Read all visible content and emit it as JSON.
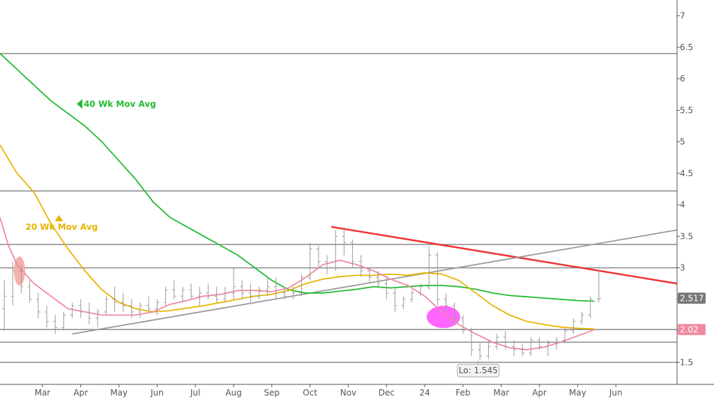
{
  "chart_data": {
    "type": "bar",
    "title": "",
    "xlabel": "",
    "ylabel": "",
    "ylim": [
      1.15,
      7.25
    ],
    "y_ticks": [
      "1.5",
      "2",
      "2.5",
      "3",
      "3.5",
      "4",
      "4.5",
      "5",
      "5.5",
      "6",
      "6.5",
      "7"
    ],
    "x_ticks": [
      {
        "label": "Mar",
        "x": 5
      },
      {
        "label": "Apr",
        "x": 9.5
      },
      {
        "label": "May",
        "x": 14
      },
      {
        "label": "Jun",
        "x": 18.5
      },
      {
        "label": "Jul",
        "x": 23
      },
      {
        "label": "Aug",
        "x": 27.5
      },
      {
        "label": "Sep",
        "x": 32
      },
      {
        "label": "Oct",
        "x": 36.5
      },
      {
        "label": "Nov",
        "x": 41
      },
      {
        "label": "Dec",
        "x": 45.5
      },
      {
        "label": "24",
        "x": 50
      },
      {
        "label": "Feb",
        "x": 54.5
      },
      {
        "label": "Mar",
        "x": 59
      },
      {
        "label": "Apr",
        "x": 63.5
      },
      {
        "label": "May",
        "x": 68
      },
      {
        "label": "Jun",
        "x": 72.5
      }
    ],
    "xlim": [
      0,
      79.7
    ],
    "grid": false,
    "price_bars": [
      [
        2.35,
        2.8,
        2.0,
        2.55
      ],
      [
        2.55,
        3.1,
        2.4,
        2.95
      ],
      [
        2.95,
        3.05,
        2.6,
        2.7
      ],
      [
        2.7,
        2.8,
        2.45,
        2.5
      ],
      [
        2.5,
        2.6,
        2.2,
        2.3
      ],
      [
        2.3,
        2.4,
        2.05,
        2.15
      ],
      [
        2.15,
        2.25,
        1.95,
        2.05
      ],
      [
        2.05,
        2.3,
        2.0,
        2.25
      ],
      [
        2.25,
        2.45,
        2.2,
        2.4
      ],
      [
        2.4,
        2.5,
        2.2,
        2.3
      ],
      [
        2.3,
        2.45,
        2.1,
        2.2
      ],
      [
        2.2,
        2.35,
        2.05,
        2.3
      ],
      [
        2.3,
        2.55,
        2.25,
        2.5
      ],
      [
        2.5,
        2.7,
        2.3,
        2.45
      ],
      [
        2.45,
        2.6,
        2.3,
        2.4
      ],
      [
        2.4,
        2.5,
        2.2,
        2.3
      ],
      [
        2.3,
        2.45,
        2.2,
        2.4
      ],
      [
        2.4,
        2.55,
        2.3,
        2.35
      ],
      [
        2.35,
        2.5,
        2.25,
        2.45
      ],
      [
        2.45,
        2.7,
        2.4,
        2.65
      ],
      [
        2.65,
        2.8,
        2.5,
        2.55
      ],
      [
        2.55,
        2.7,
        2.45,
        2.65
      ],
      [
        2.65,
        2.75,
        2.5,
        2.55
      ],
      [
        2.55,
        2.7,
        2.4,
        2.6
      ],
      [
        2.6,
        2.75,
        2.5,
        2.55
      ],
      [
        2.55,
        2.7,
        2.45,
        2.5
      ],
      [
        2.5,
        2.7,
        2.45,
        2.6
      ],
      [
        2.6,
        3.0,
        2.5,
        2.7
      ],
      [
        2.7,
        2.8,
        2.5,
        2.6
      ],
      [
        2.6,
        2.75,
        2.45,
        2.55
      ],
      [
        2.55,
        2.7,
        2.5,
        2.65
      ],
      [
        2.65,
        2.85,
        2.55,
        2.7
      ],
      [
        2.7,
        2.85,
        2.5,
        2.6
      ],
      [
        2.6,
        2.7,
        2.5,
        2.55
      ],
      [
        2.55,
        2.7,
        2.5,
        2.6
      ],
      [
        2.6,
        2.9,
        2.55,
        2.85
      ],
      [
        2.85,
        3.4,
        2.8,
        3.3
      ],
      [
        3.3,
        3.35,
        3.0,
        3.1
      ],
      [
        3.1,
        3.2,
        2.9,
        3.0
      ],
      [
        3.0,
        3.6,
        2.95,
        3.5
      ],
      [
        3.5,
        3.65,
        3.2,
        3.4
      ],
      [
        3.4,
        3.45,
        3.0,
        3.1
      ],
      [
        3.1,
        3.2,
        2.85,
        2.95
      ],
      [
        2.95,
        3.0,
        2.75,
        2.85
      ],
      [
        2.85,
        2.95,
        2.7,
        2.75
      ],
      [
        2.75,
        2.85,
        2.5,
        2.6
      ],
      [
        2.6,
        2.7,
        2.3,
        2.4
      ],
      [
        2.4,
        2.55,
        2.35,
        2.5
      ],
      [
        2.5,
        2.65,
        2.45,
        2.6
      ],
      [
        2.6,
        2.75,
        2.55,
        2.7
      ],
      [
        2.7,
        3.35,
        2.65,
        3.2
      ],
      [
        3.2,
        3.25,
        2.4,
        2.5
      ],
      [
        2.5,
        2.6,
        2.3,
        2.4
      ],
      [
        2.4,
        2.45,
        2.1,
        2.2
      ],
      [
        2.2,
        2.25,
        1.95,
        2.0
      ],
      [
        2.0,
        2.05,
        1.6,
        1.7
      ],
      [
        1.7,
        1.8,
        1.545,
        1.6
      ],
      [
        1.6,
        1.85,
        1.55,
        1.75
      ],
      [
        1.75,
        1.95,
        1.7,
        1.9
      ],
      [
        1.9,
        2.0,
        1.7,
        1.75
      ],
      [
        1.75,
        1.85,
        1.6,
        1.7
      ],
      [
        1.7,
        1.8,
        1.6,
        1.65
      ],
      [
        1.65,
        1.9,
        1.6,
        1.85
      ],
      [
        1.85,
        1.9,
        1.7,
        1.75
      ],
      [
        1.75,
        1.85,
        1.6,
        1.8
      ],
      [
        1.8,
        1.9,
        1.7,
        1.85
      ],
      [
        1.85,
        2.05,
        1.8,
        2.0
      ],
      [
        2.0,
        2.2,
        1.95,
        2.15
      ],
      [
        2.15,
        2.3,
        2.1,
        2.25
      ],
      [
        2.25,
        2.55,
        2.2,
        2.5
      ],
      [
        2.5,
        2.95,
        2.45,
        2.517
      ]
    ],
    "series": [
      {
        "name": "40 Wk Mov Avg",
        "color": "#22bb33",
        "x": [
          0,
          2,
          4,
          6,
          8,
          10,
          12,
          14,
          16,
          18,
          20,
          22,
          24,
          26,
          28,
          30,
          32,
          34,
          36,
          38,
          40,
          42,
          44,
          46,
          48,
          50,
          52,
          54,
          56,
          58,
          60,
          62,
          64,
          66,
          68,
          70
        ],
        "values": [
          6.4,
          6.15,
          5.9,
          5.65,
          5.45,
          5.25,
          5.0,
          4.7,
          4.4,
          4.05,
          3.8,
          3.65,
          3.5,
          3.35,
          3.2,
          3.0,
          2.8,
          2.65,
          2.6,
          2.6,
          2.63,
          2.66,
          2.7,
          2.68,
          2.7,
          2.72,
          2.72,
          2.7,
          2.66,
          2.6,
          2.56,
          2.54,
          2.52,
          2.5,
          2.48,
          2.47
        ]
      },
      {
        "name": "20 Wk Mov Avg",
        "color": "#e6b400",
        "x": [
          0,
          2,
          4,
          6,
          8,
          10,
          12,
          14,
          16,
          18,
          20,
          22,
          24,
          26,
          28,
          30,
          32,
          34,
          36,
          38,
          40,
          42,
          44,
          46,
          48,
          50,
          52,
          54,
          56,
          58,
          60,
          62,
          64,
          66,
          68,
          70
        ],
        "values": [
          4.95,
          4.5,
          4.2,
          3.7,
          3.3,
          2.95,
          2.65,
          2.45,
          2.35,
          2.3,
          2.32,
          2.36,
          2.4,
          2.45,
          2.5,
          2.55,
          2.58,
          2.64,
          2.75,
          2.82,
          2.86,
          2.88,
          2.88,
          2.9,
          2.88,
          2.92,
          2.9,
          2.8,
          2.6,
          2.4,
          2.25,
          2.15,
          2.1,
          2.06,
          2.04,
          2.03
        ]
      },
      {
        "name": "",
        "color": "#f08aa0",
        "x": [
          0,
          1,
          2,
          4,
          6,
          8,
          10,
          12,
          14,
          16,
          18,
          20,
          22,
          24,
          26,
          28,
          30,
          32,
          34,
          36,
          38,
          40,
          42,
          44,
          46,
          48,
          50,
          52,
          54,
          56,
          58,
          60,
          62,
          64,
          66,
          68,
          70
        ],
        "values": [
          3.8,
          3.35,
          3.05,
          2.75,
          2.55,
          2.35,
          2.3,
          2.25,
          2.25,
          2.25,
          2.3,
          2.42,
          2.48,
          2.55,
          2.58,
          2.64,
          2.64,
          2.62,
          2.68,
          2.85,
          3.05,
          3.12,
          3.05,
          2.95,
          2.82,
          2.72,
          2.55,
          2.3,
          2.1,
          1.95,
          1.82,
          1.73,
          1.7,
          1.74,
          1.82,
          1.92,
          2.02
        ]
      }
    ],
    "horizontal_lines": [
      6.4,
      4.22,
      3.37,
      3.0,
      2.02,
      1.82,
      1.5
    ],
    "trendlines": [
      {
        "color": "#ee3333",
        "from": [
          39,
          3.65
        ],
        "to": [
          79.7,
          2.75
        ]
      },
      {
        "color": "#999999",
        "from": [
          8.5,
          1.95
        ],
        "to": [
          79.7,
          3.6
        ]
      }
    ],
    "highlights": [
      {
        "color": "#f4a8a0",
        "x": 2.3,
        "y": 2.95
      },
      {
        "color": "#ff66ff",
        "x": 52.2,
        "y": 2.22
      }
    ],
    "annotations": [
      {
        "text": "40 Wk Mov Avg",
        "color": "#22bb33",
        "x": 9.2,
        "y": 5.6,
        "marker": "left"
      },
      {
        "text": "20 Wk Mov Avg",
        "color": "#e6b400",
        "x": 3,
        "y": 3.65,
        "marker": "up"
      },
      {
        "text": "Lo: 1.545",
        "color": "#555555",
        "x": 56.3,
        "y": 1.37,
        "marker": "box"
      }
    ],
    "price_tags": [
      {
        "text": "2.517",
        "value": 2.517,
        "color": "#777777"
      },
      {
        "text": "2.02",
        "value": 2.02,
        "color": "#f08aa0"
      }
    ]
  }
}
